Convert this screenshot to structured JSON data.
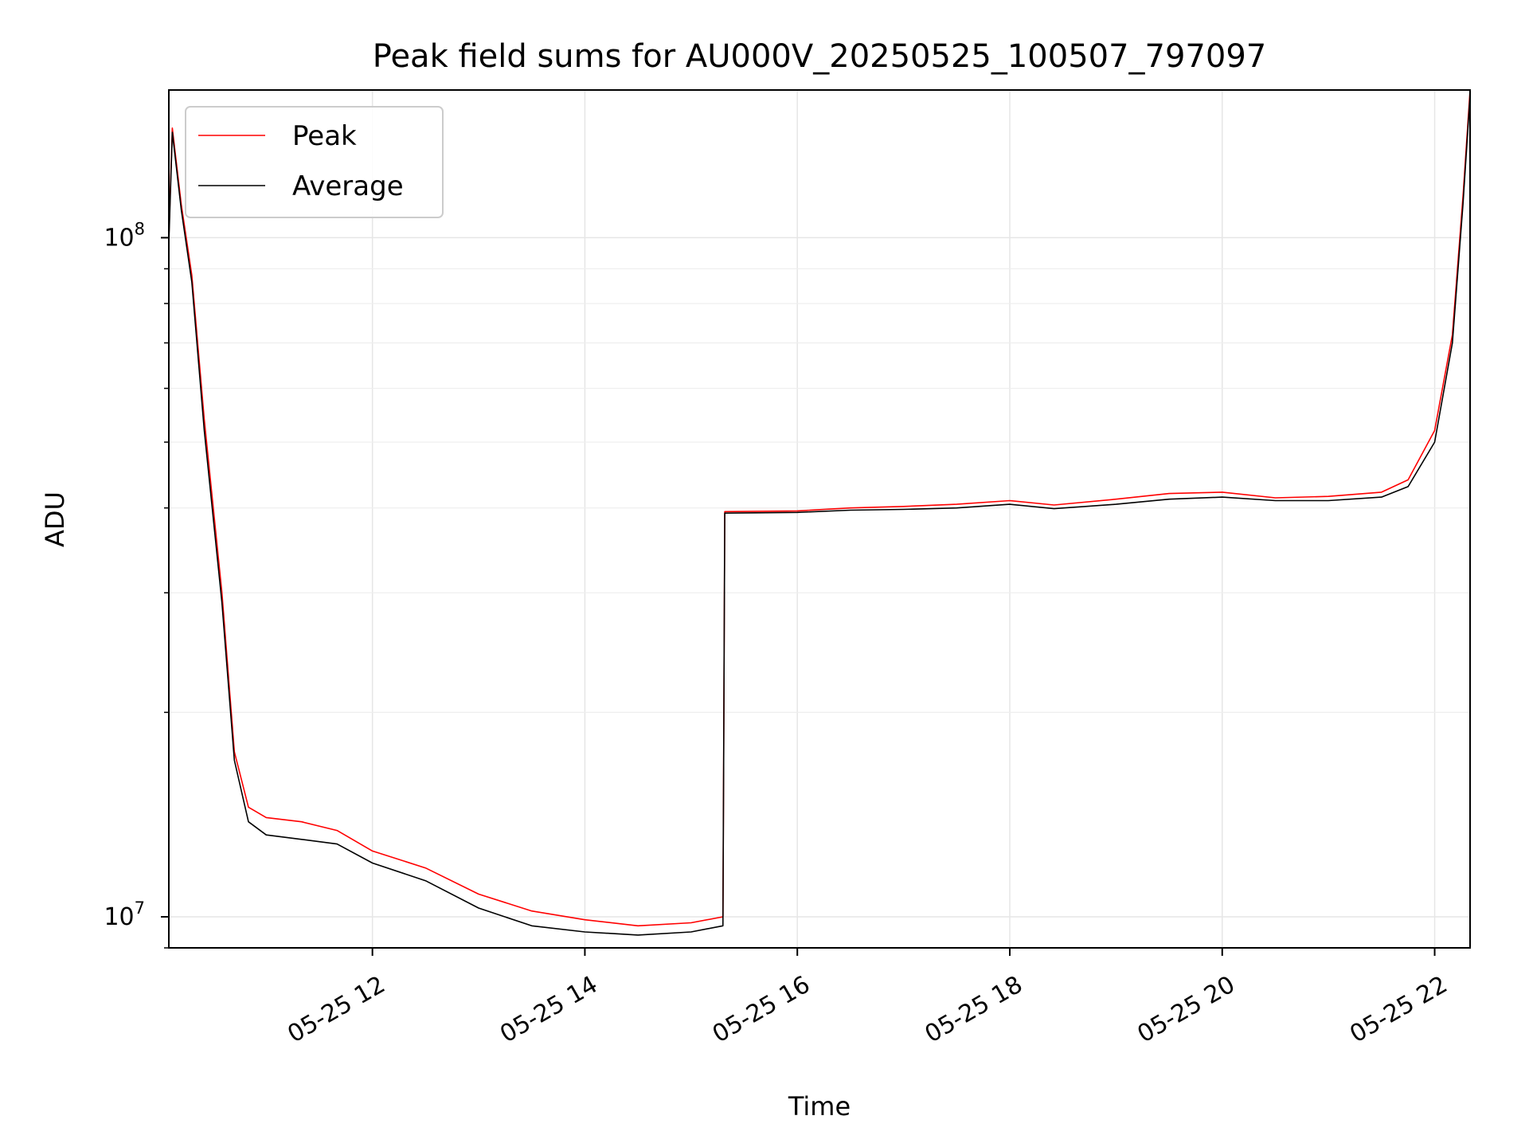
{
  "chart_data": {
    "type": "line",
    "title": "Peak field sums for AU000V_20250525_100507_797097",
    "xlabel": "Time",
    "ylabel": "ADU",
    "yscale": "log",
    "grid": true,
    "legend_position": "top-left",
    "xlim": [
      "2025-05-25T10:05",
      "2025-05-25T22:20"
    ],
    "ylim": [
      9000000,
      165000000
    ],
    "x_ticks": [
      {
        "t": "2025-05-25T12:00",
        "label": "05-25 12"
      },
      {
        "t": "2025-05-25T14:00",
        "label": "05-25 14"
      },
      {
        "t": "2025-05-25T16:00",
        "label": "05-25 16"
      },
      {
        "t": "2025-05-25T18:00",
        "label": "05-25 18"
      },
      {
        "t": "2025-05-25T20:00",
        "label": "05-25 20"
      },
      {
        "t": "2025-05-25T22:00",
        "label": "05-25 22"
      }
    ],
    "y_ticks": [
      {
        "value": 10000000,
        "base": "10",
        "exp": "7"
      },
      {
        "value": 100000000,
        "base": "10",
        "exp": "8"
      }
    ],
    "series": [
      {
        "name": "Peak",
        "color": "#ff0000",
        "points": [
          [
            "2025-05-25T10:05",
            100000000
          ],
          [
            "2025-05-25T10:07",
            145000000
          ],
          [
            "2025-05-25T10:12",
            112000000
          ],
          [
            "2025-05-25T10:18",
            88000000
          ],
          [
            "2025-05-25T10:25",
            54000000
          ],
          [
            "2025-05-25T10:35",
            30000000
          ],
          [
            "2025-05-25T10:42",
            17500000
          ],
          [
            "2025-05-25T10:50",
            14500000
          ],
          [
            "2025-05-25T11:00",
            14000000
          ],
          [
            "2025-05-25T11:20",
            13800000
          ],
          [
            "2025-05-25T11:40",
            13400000
          ],
          [
            "2025-05-25T12:00",
            12500000
          ],
          [
            "2025-05-25T12:30",
            11800000
          ],
          [
            "2025-05-25T13:00",
            10800000
          ],
          [
            "2025-05-25T13:30",
            10200000
          ],
          [
            "2025-05-25T14:00",
            9900000
          ],
          [
            "2025-05-25T14:30",
            9700000
          ],
          [
            "2025-05-25T15:00",
            9800000
          ],
          [
            "2025-05-25T15:18",
            10000000
          ],
          [
            "2025-05-25T15:19",
            39500000
          ],
          [
            "2025-05-25T16:00",
            39600000
          ],
          [
            "2025-05-25T16:30",
            40000000
          ],
          [
            "2025-05-25T17:00",
            40200000
          ],
          [
            "2025-05-25T17:30",
            40500000
          ],
          [
            "2025-05-25T18:00",
            41000000
          ],
          [
            "2025-05-25T18:25",
            40400000
          ],
          [
            "2025-05-25T19:00",
            41200000
          ],
          [
            "2025-05-25T19:30",
            42000000
          ],
          [
            "2025-05-25T20:00",
            42200000
          ],
          [
            "2025-05-25T20:30",
            41400000
          ],
          [
            "2025-05-25T21:00",
            41600000
          ],
          [
            "2025-05-25T21:30",
            42200000
          ],
          [
            "2025-05-25T21:45",
            44000000
          ],
          [
            "2025-05-25T22:00",
            52000000
          ],
          [
            "2025-05-25T22:10",
            72000000
          ],
          [
            "2025-05-25T22:16",
            115000000
          ],
          [
            "2025-05-25T22:20",
            165000000
          ]
        ]
      },
      {
        "name": "Average",
        "color": "#000000",
        "points": [
          [
            "2025-05-25T10:05",
            98000000
          ],
          [
            "2025-05-25T10:07",
            143000000
          ],
          [
            "2025-05-25T10:12",
            110000000
          ],
          [
            "2025-05-25T10:18",
            86000000
          ],
          [
            "2025-05-25T10:25",
            52000000
          ],
          [
            "2025-05-25T10:35",
            29000000
          ],
          [
            "2025-05-25T10:42",
            17000000
          ],
          [
            "2025-05-25T10:50",
            13800000
          ],
          [
            "2025-05-25T11:00",
            13200000
          ],
          [
            "2025-05-25T11:20",
            13000000
          ],
          [
            "2025-05-25T11:40",
            12800000
          ],
          [
            "2025-05-25T12:00",
            12000000
          ],
          [
            "2025-05-25T12:30",
            11300000
          ],
          [
            "2025-05-25T13:00",
            10300000
          ],
          [
            "2025-05-25T13:30",
            9700000
          ],
          [
            "2025-05-25T14:00",
            9500000
          ],
          [
            "2025-05-25T14:30",
            9400000
          ],
          [
            "2025-05-25T15:00",
            9500000
          ],
          [
            "2025-05-25T15:18",
            9700000
          ],
          [
            "2025-05-25T15:19",
            39300000
          ],
          [
            "2025-05-25T16:00",
            39400000
          ],
          [
            "2025-05-25T16:30",
            39700000
          ],
          [
            "2025-05-25T17:00",
            39800000
          ],
          [
            "2025-05-25T17:30",
            40000000
          ],
          [
            "2025-05-25T18:00",
            40500000
          ],
          [
            "2025-05-25T18:25",
            39900000
          ],
          [
            "2025-05-25T19:00",
            40500000
          ],
          [
            "2025-05-25T19:30",
            41200000
          ],
          [
            "2025-05-25T20:00",
            41500000
          ],
          [
            "2025-05-25T20:30",
            41000000
          ],
          [
            "2025-05-25T21:00",
            41000000
          ],
          [
            "2025-05-25T21:30",
            41500000
          ],
          [
            "2025-05-25T21:45",
            43000000
          ],
          [
            "2025-05-25T22:00",
            50000000
          ],
          [
            "2025-05-25T22:10",
            70000000
          ],
          [
            "2025-05-25T22:16",
            112000000
          ],
          [
            "2025-05-25T22:20",
            162000000
          ]
        ]
      }
    ]
  }
}
